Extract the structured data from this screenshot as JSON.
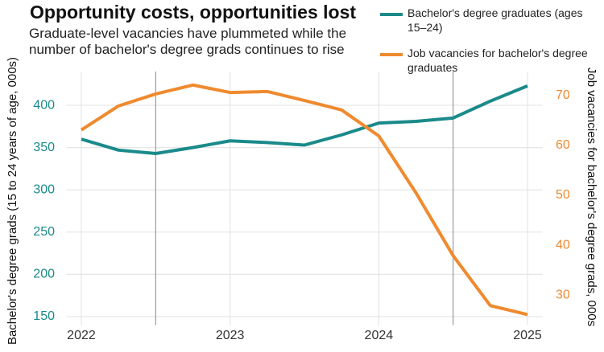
{
  "chart_data": {
    "type": "line",
    "title": "Opportunity costs, opportunities lost",
    "subtitle": "Graduate-level vacancies have plummeted while the number of bachelor's degree grads continues to rise",
    "y_label": "Bachelor's degree grads (15 to 24 years of age, 000s)",
    "y2_label": "Job vacancies for bachelor's degree grads, 000s",
    "x": [
      2022,
      2022.25,
      2022.5,
      2022.75,
      2023,
      2023.25,
      2023.5,
      2023.75,
      2024,
      2024.25,
      2024.5,
      2024.75,
      2025
    ],
    "xlim": [
      2021.9,
      2025.1
    ],
    "xticks": [
      2022,
      2023,
      2024,
      2025
    ],
    "ylim": [
      140,
      440
    ],
    "yticks": [
      150,
      200,
      250,
      300,
      350,
      400
    ],
    "y2lim": [
      24,
      74.8
    ],
    "y2ticks": [
      30,
      40,
      50,
      60,
      70
    ],
    "reference_lines": [
      2022.5,
      2024.5
    ],
    "grid": true,
    "legend": "top-right",
    "series": [
      {
        "name": "Bachelor's degree graduates (ages 15–24)",
        "color": "#1a8a8a",
        "axis": "y",
        "values": [
          360,
          347,
          343,
          350,
          358,
          356,
          353,
          365,
          379,
          381,
          385,
          405,
          423
        ]
      },
      {
        "name": "Job vacancies for bachelor's degree graduates",
        "color": "#ef8a2e",
        "axis": "y2",
        "values": [
          63.1,
          67.9,
          70.3,
          72.1,
          70.6,
          70.8,
          69.0,
          67.1,
          61.9,
          50.5,
          37.9,
          27.9,
          26.1
        ]
      }
    ]
  }
}
